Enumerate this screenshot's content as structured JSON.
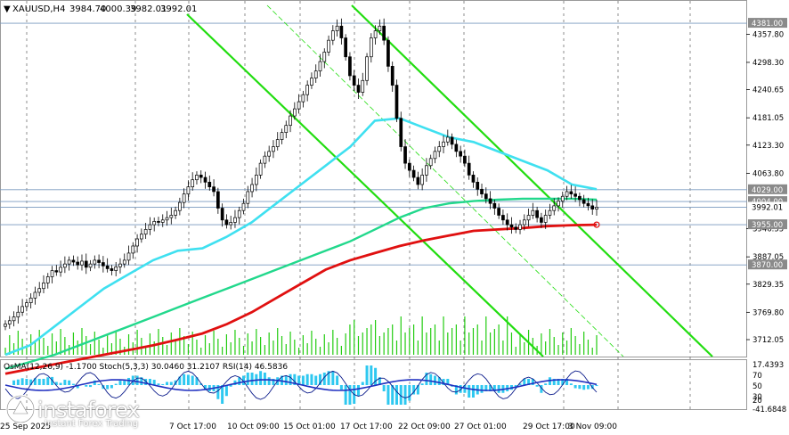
{
  "header": {
    "symbol": "XAUUSD,H4",
    "open": "3984.70",
    "high": "4000.39",
    "low": "3982.01",
    "close": "3992.01"
  },
  "oscillator_header": "OsMA(12,26,9) -1.1700  Stoch(5,3,3) 30.0460 31.2107  RSI(14) 46.5836",
  "watermark": {
    "brand": "instaforex",
    "tagline": "Instant Forex Trading"
  },
  "colors": {
    "candle": "#000000",
    "ema_fast": "#3fe0f0",
    "ema_mid": "#22d88c",
    "ema_slow": "#e01010",
    "channel": "#22dd10",
    "volume": "#22cc10",
    "osma": "#2ec8f0",
    "stoch_main": "#0a1a8a",
    "rsi": "#2030c0",
    "level_line": "#7a9abf"
  },
  "chart_data": {
    "type": "line",
    "title": "",
    "ylim": [
      3680,
      4400
    ],
    "price_ticks": [
      "4357.80",
      "4298.30",
      "4240.65",
      "4181.05",
      "4123.30",
      "4063.80",
      "3946.55",
      "3887.05",
      "3829.35",
      "3769.80",
      "3712.05"
    ],
    "level_labels": [
      {
        "label": "4381.00",
        "price": 4381
      },
      {
        "label": "4029.00",
        "price": 4029
      },
      {
        "label": "4004.00",
        "price": 4004
      },
      {
        "label": "3992.01",
        "price": 3992
      },
      {
        "label": "3955.00",
        "price": 3955
      },
      {
        "label": "3870.00",
        "price": 3870
      }
    ],
    "x_labels": [
      "25 Sep 2025",
      "7 Oct 17:00",
      "10 Oct 09:00",
      "15 Oct 01:00",
      "17 Oct 17:00",
      "22 Oct 09:00",
      "27 Oct 01:00",
      "29 Oct 17:00",
      "3 Nov 09:00"
    ],
    "bars": 140,
    "close": [
      3745,
      3752,
      3760,
      3770,
      3782,
      3790,
      3800,
      3812,
      3820,
      3832,
      3845,
      3858,
      3855,
      3865,
      3872,
      3880,
      3876,
      3870,
      3878,
      3865,
      3872,
      3880,
      3875,
      3868,
      3862,
      3858,
      3866,
      3872,
      3880,
      3895,
      3910,
      3925,
      3935,
      3945,
      3955,
      3962,
      3960,
      3965,
      3970,
      3975,
      3985,
      4002,
      4020,
      4035,
      4050,
      4060,
      4055,
      4045,
      4035,
      4025,
      3990,
      3965,
      3955,
      3960,
      3970,
      3985,
      4000,
      4025,
      4040,
      4060,
      4085,
      4100,
      4110,
      4120,
      4135,
      4150,
      4165,
      4185,
      4200,
      4215,
      4230,
      4250,
      4265,
      4280,
      4300,
      4320,
      4345,
      4365,
      4375,
      4350,
      4310,
      4270,
      4250,
      4235,
      4260,
      4310,
      4350,
      4365,
      4375,
      4345,
      4290,
      4250,
      4180,
      4120,
      4085,
      4070,
      4055,
      4040,
      4060,
      4080,
      4095,
      4110,
      4120,
      4130,
      4140,
      4125,
      4110,
      4100,
      4085,
      4060,
      4045,
      4030,
      4020,
      4010,
      4000,
      3990,
      3975,
      3965,
      3955,
      3950,
      3945,
      3955,
      3965,
      3975,
      3985,
      3970,
      3960,
      3975,
      3985,
      3995,
      4005,
      4015,
      4025,
      4020,
      4015,
      4008,
      4000,
      3995,
      3988,
      3992
    ],
    "ema_fast": [
      3680,
      3700,
      3740,
      3780,
      3820,
      3850,
      3880,
      3900,
      3905,
      3930,
      3960,
      4000,
      4040,
      4080,
      4120,
      4175,
      4180,
      4160,
      4140,
      4130,
      4110,
      4090,
      4070,
      4040,
      4030
    ],
    "ema_mid": [
      3650,
      3665,
      3680,
      3700,
      3720,
      3740,
      3760,
      3780,
      3800,
      3820,
      3840,
      3860,
      3880,
      3900,
      3920,
      3945,
      3970,
      3990,
      4000,
      4005,
      4008,
      4010,
      4010,
      4010,
      4008
    ],
    "ema_slow": [
      3640,
      3650,
      3660,
      3670,
      3680,
      3690,
      3700,
      3712,
      3725,
      3745,
      3770,
      3800,
      3830,
      3860,
      3880,
      3895,
      3910,
      3922,
      3932,
      3942,
      3945,
      3948,
      3952,
      3954,
      3955
    ],
    "oscillator_levels": [
      "17.4393",
      "-41.6848"
    ],
    "stoch_levels": [
      "70",
      "50",
      "30",
      "20"
    ]
  }
}
